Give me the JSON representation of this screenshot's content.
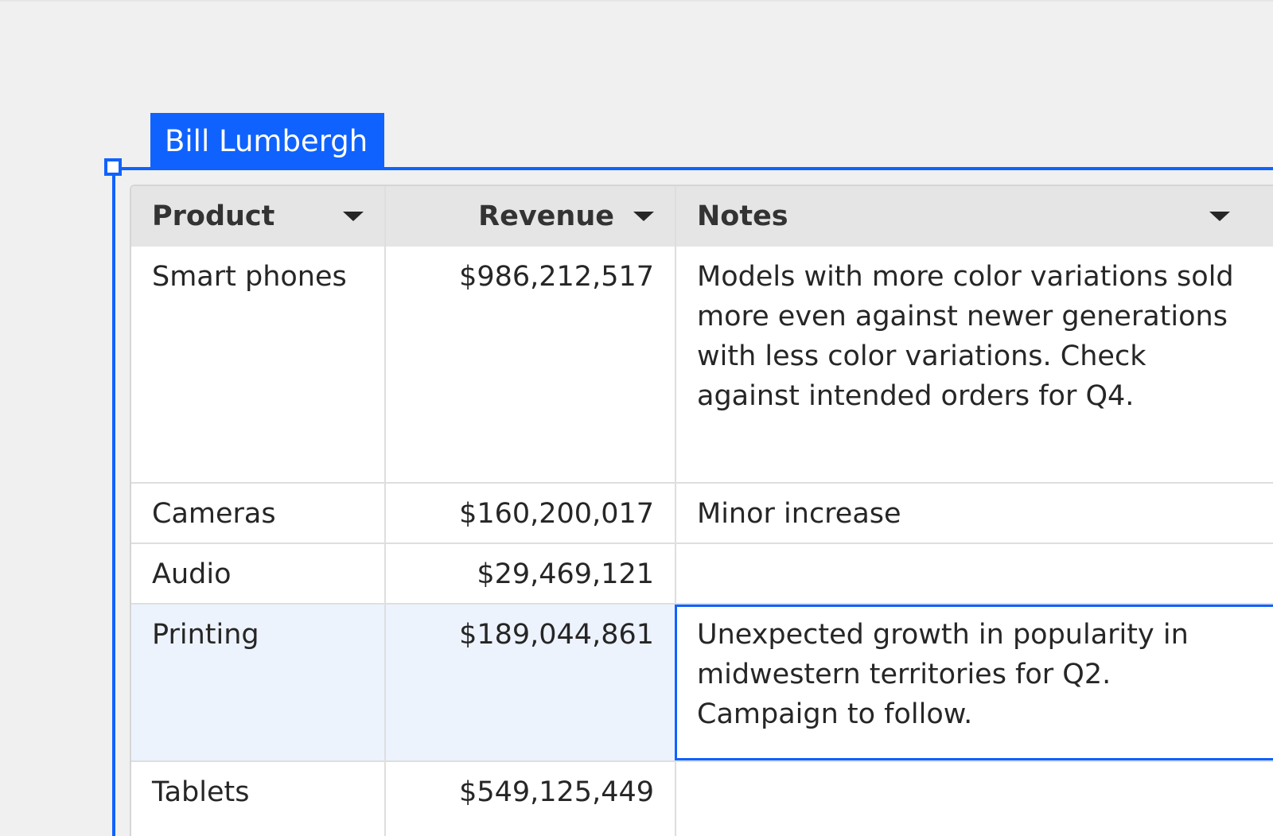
{
  "collaborator": {
    "name": "Bill Lumbergh",
    "color": "#0f62fe"
  },
  "table": {
    "columns": [
      {
        "label": "Product",
        "icon": "caret-down-icon"
      },
      {
        "label": "Revenue",
        "icon": "caret-down-icon"
      },
      {
        "label": "Notes",
        "icon": "caret-down-icon"
      }
    ],
    "rows": [
      {
        "product": "Smart phones",
        "revenue": "$986,212,517",
        "notes": "Models with more color variations sold more even against newer generations with less color variations. Check against intended orders for Q4."
      },
      {
        "product": "Cameras",
        "revenue": "$160,200,017",
        "notes": "Minor increase"
      },
      {
        "product": "Audio",
        "revenue": "$29,469,121",
        "notes": ""
      },
      {
        "product": "Printing",
        "revenue": "$189,044,861",
        "notes": "Unexpected growth in popularity in midwestern territories for Q2. Campaign to follow."
      },
      {
        "product": "Tablets",
        "revenue": "$549,125,449",
        "notes": ""
      }
    ]
  }
}
